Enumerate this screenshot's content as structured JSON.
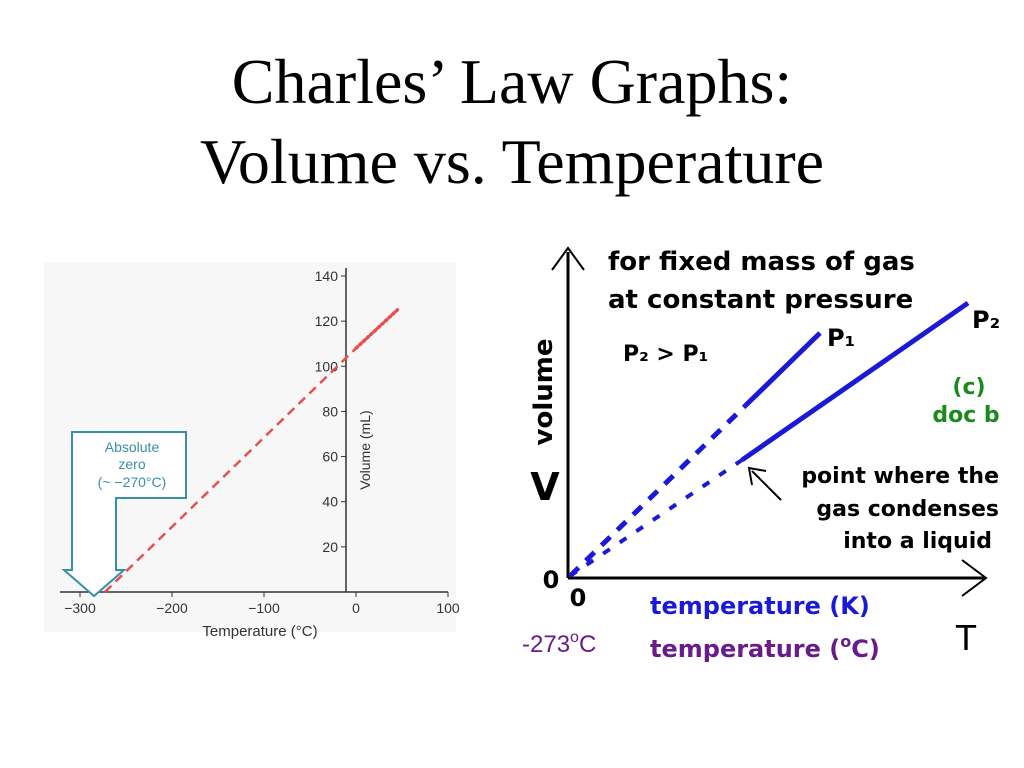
{
  "slide": {
    "title_line1": "Charles’ Law Graphs:",
    "title_line2": "Volume vs. Temperature"
  },
  "chart_data": [
    {
      "type": "line",
      "xlabel": "Temperature (°C)",
      "ylabel": "Volume (mL)",
      "xlim": [
        -300,
        100
      ],
      "ylim": [
        0,
        140
      ],
      "x_ticks": [
        "−300",
        "−200",
        "−100",
        "0",
        "100"
      ],
      "y_ticks": [
        "20",
        "40",
        "60",
        "80",
        "100",
        "120",
        "140"
      ],
      "series": [
        {
          "x": [
            -273,
            0,
            45
          ],
          "y": [
            0,
            108,
            125
          ]
        }
      ],
      "annotation": {
        "line1": "Absolute",
        "line2": "zero",
        "line3": "(~ −270°C)"
      },
      "colors": {
        "line": "#e55050",
        "callout": "#3a8fa8"
      }
    },
    {
      "type": "line",
      "xlabel_kelvin": "temperature (K)",
      "xlabel_celsius": "temperature (",
      "xlabel_celsius_unit": "o",
      "xlabel_celsius_end": "C)",
      "x_axis_symbol": "T",
      "y_axis_symbol": "V",
      "ylabel": "volume",
      "origin_x": "0",
      "origin_y": "0",
      "celsius_origin": "-273",
      "celsius_origin_unit": "o",
      "celsius_origin_end": "C",
      "note_line1": "for fixed mass of gas",
      "note_line2": "at constant pressure",
      "pressure_relation": "P₂ > P₁",
      "series": [
        {
          "name": "P₁"
        },
        {
          "name": "P₂"
        }
      ],
      "condense_note_line1": "point where the",
      "condense_note_line2": "gas condenses",
      "condense_note_line3": "into a liquid",
      "credit_line1": "(c)",
      "credit_line2": "doc b",
      "colors": {
        "series": "#1a1ad6",
        "kelvin_label": "#1a1ad6",
        "celsius_label": "#6a1b8a",
        "credit": "#1a8a1a"
      }
    }
  ]
}
